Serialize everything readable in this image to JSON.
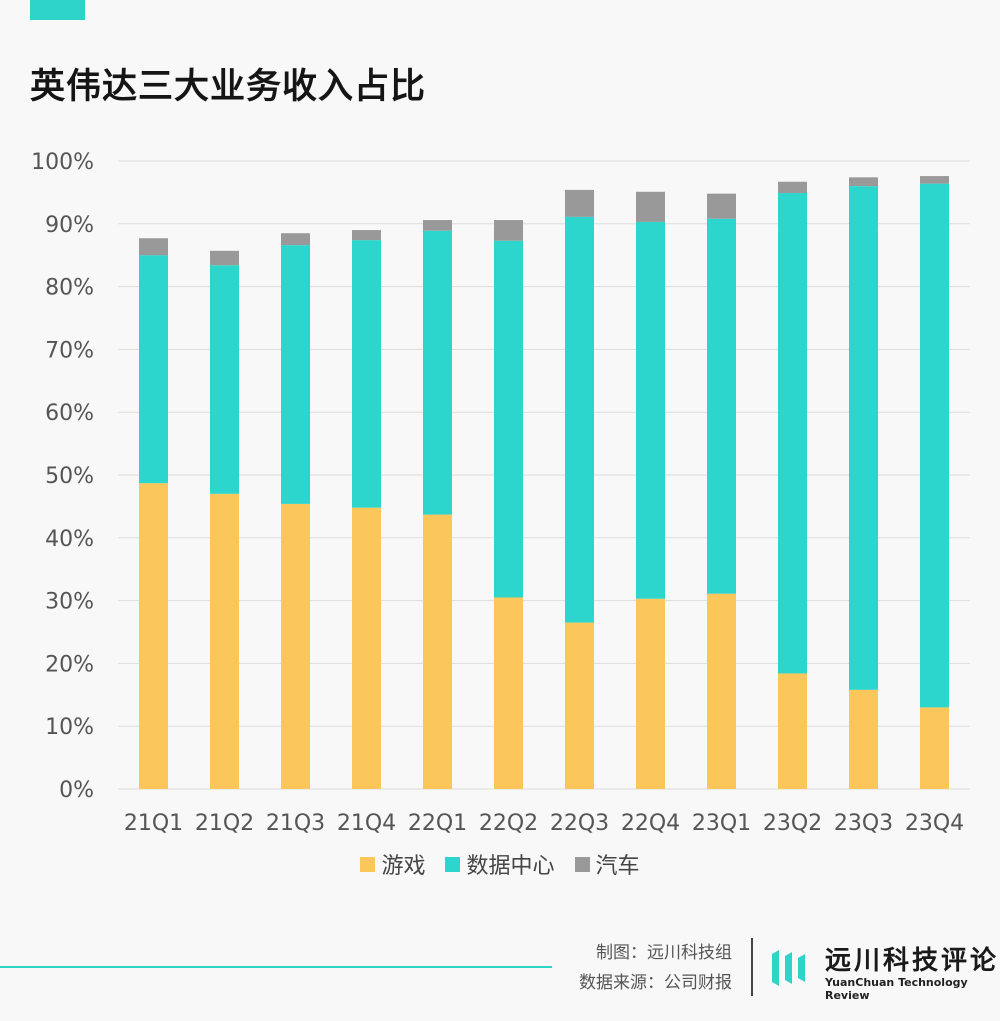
{
  "title": "英伟达三大业务收入占比",
  "colors": {
    "accent": "#2dd4c8",
    "gaming": "#fbc65a",
    "datacenter": "#2dd6cc",
    "auto": "#999999",
    "grid": "#dddddd",
    "tick": "#555555"
  },
  "chart_data": {
    "type": "bar",
    "stacked": true,
    "categories": [
      "21Q1",
      "21Q2",
      "21Q3",
      "21Q4",
      "22Q1",
      "22Q2",
      "22Q3",
      "22Q4",
      "23Q1",
      "23Q2",
      "23Q3",
      "23Q4"
    ],
    "series": [
      {
        "name": "游戏",
        "color": "#fbc65a",
        "values": [
          48.7,
          47.0,
          45.4,
          44.8,
          43.7,
          30.5,
          26.5,
          30.3,
          31.1,
          18.4,
          15.8,
          13.0
        ]
      },
      {
        "name": "数据中心",
        "color": "#2dd6cc",
        "values": [
          36.3,
          36.4,
          41.2,
          42.6,
          45.2,
          56.8,
          64.6,
          60.0,
          59.7,
          76.5,
          80.2,
          83.4
        ]
      },
      {
        "name": "汽车",
        "color": "#999999",
        "values": [
          2.7,
          2.3,
          1.9,
          1.6,
          1.7,
          3.3,
          4.3,
          4.8,
          4.0,
          1.8,
          1.4,
          1.2
        ]
      }
    ],
    "ylim": [
      0,
      100
    ],
    "yticks": [
      "0%",
      "10%",
      "20%",
      "30%",
      "40%",
      "50%",
      "60%",
      "70%",
      "80%",
      "90%",
      "100%"
    ],
    "grid": true,
    "legend_position": "bottom-center"
  },
  "legend": [
    {
      "label": "游戏",
      "color": "#fbc65a"
    },
    {
      "label": "数据中心",
      "color": "#2dd6cc"
    },
    {
      "label": "汽车",
      "color": "#999999"
    }
  ],
  "footer": {
    "credit_line1": "制图：远川科技组",
    "credit_line2": "数据来源：公司财报",
    "brand_name": "远川科技评论",
    "brand_en": "YuanChuan Technology Review"
  }
}
